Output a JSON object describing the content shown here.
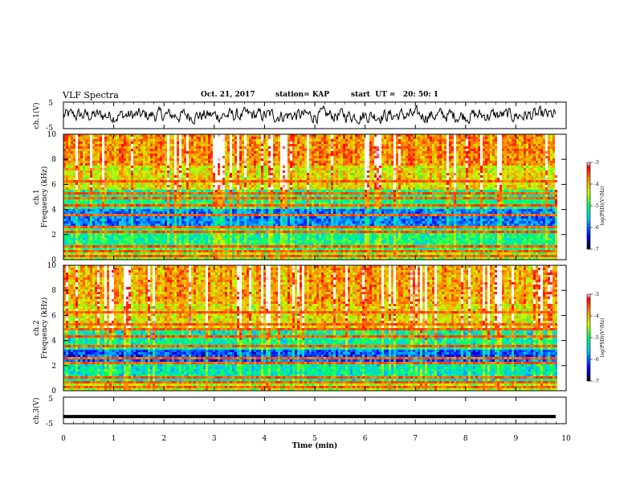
{
  "header": {
    "title": "VLF Spectra",
    "date": "Oct. 21, 2017",
    "station": "station= KAP",
    "start_ut": "start  UT =   20: 50: 1"
  },
  "chart_data": [
    {
      "type": "line",
      "panel": "ch1-waveform",
      "ylabel": "ch.1(V)",
      "ylim": [
        -5,
        5
      ],
      "yticks": [
        "5",
        "-5"
      ],
      "xlim": [
        0,
        10
      ],
      "description_values": {
        "mean": 0,
        "amplitude_approx": 2.5
      }
    },
    {
      "type": "heatmap",
      "panel": "ch1-spectrogram",
      "ylabel_line1": "ch.1",
      "ylabel_line2": "Frequency  (kHz)",
      "ylim": [
        0,
        10
      ],
      "yticks": [
        "0",
        "2",
        "4",
        "6",
        "8",
        "10"
      ],
      "xlim": [
        0,
        10
      ],
      "band_means": [
        {
          "f0": 0,
          "f1": 0.6,
          "level": -4.6
        },
        {
          "f0": 0.6,
          "f1": 1.2,
          "level": -5.0
        },
        {
          "f0": 1.2,
          "f1": 2.6,
          "level": -5.1
        },
        {
          "f0": 2.6,
          "f1": 4.0,
          "level": -5.9
        },
        {
          "f0": 4.0,
          "f1": 5.5,
          "level": -5.1
        },
        {
          "f0": 5.5,
          "f1": 7.5,
          "level": -4.2
        },
        {
          "f0": 7.5,
          "f1": 10,
          "level": -3.8
        }
      ],
      "colorbar_label": "log(PSD)(V²/Hz)",
      "colorbar_ticks": [
        "-3",
        "-4",
        "-5",
        "-6",
        "-7"
      ]
    },
    {
      "type": "heatmap",
      "panel": "ch2-spectrogram",
      "ylabel_line1": "ch.2",
      "ylabel_line2": "Frequency  (kHz)",
      "ylim": [
        0,
        10
      ],
      "yticks": [
        "0",
        "2",
        "4",
        "6",
        "8",
        "10"
      ],
      "xlim": [
        0,
        10
      ],
      "band_means": [
        {
          "f0": 0,
          "f1": 0.7,
          "level": -4.5
        },
        {
          "f0": 0.7,
          "f1": 2.2,
          "level": -5.3
        },
        {
          "f0": 2.2,
          "f1": 3.3,
          "level": -6.1
        },
        {
          "f0": 3.3,
          "f1": 4.8,
          "level": -5.2
        },
        {
          "f0": 4.8,
          "f1": 7.0,
          "level": -4.2
        },
        {
          "f0": 7.0,
          "f1": 10,
          "level": -3.9
        }
      ],
      "colorbar_label": "log(PSD)(V²/Hz)",
      "colorbar_ticks": [
        "-3",
        "-4",
        "-5",
        "-6",
        "-7"
      ]
    },
    {
      "type": "line",
      "panel": "ch3-waveform",
      "ylabel": "ch.3(V)",
      "ylim": [
        -5,
        5
      ],
      "yticks": [
        "5",
        "-5"
      ],
      "xlim": [
        0,
        10
      ],
      "xlabel": "Time  (min)",
      "xticks": [
        "0",
        "1",
        "2",
        "3",
        "4",
        "5",
        "6",
        "7",
        "8",
        "9",
        "10"
      ],
      "constant_value": -2.3
    }
  ]
}
